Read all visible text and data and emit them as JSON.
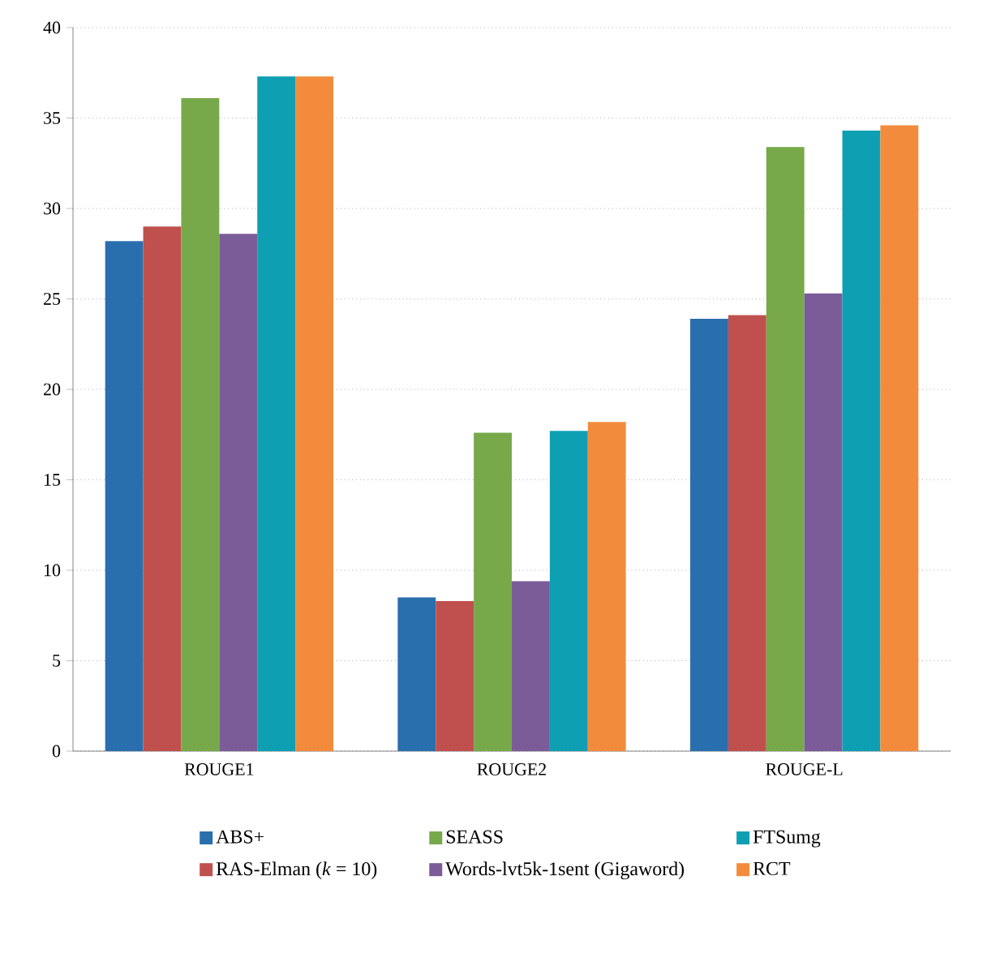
{
  "chart_data": {
    "type": "bar",
    "categories": [
      "ROUGE1",
      "ROUGE2",
      "ROUGE-L"
    ],
    "series": [
      {
        "name": "ABS+",
        "color": "#2a6fad",
        "values": [
          28.2,
          8.5,
          23.9
        ]
      },
      {
        "name": "RAS-Elman (*k* = 10)",
        "color": "#c0504d",
        "values": [
          29.0,
          8.3,
          24.1
        ]
      },
      {
        "name": "SEASS",
        "color": "#77a94a",
        "values": [
          36.1,
          17.6,
          33.4
        ]
      },
      {
        "name": "Words-lvt5k-1sent (Gigaword)",
        "color": "#7b5c99",
        "values": [
          28.6,
          9.4,
          25.3
        ]
      },
      {
        "name": "FTSumg",
        "color": "#0e9fb3",
        "values": [
          37.3,
          17.7,
          34.3
        ]
      },
      {
        "name": "RCT",
        "color": "#f28c3c",
        "values": [
          37.3,
          18.2,
          34.6
        ]
      }
    ],
    "ylim": [
      0,
      40
    ],
    "yticks": [
      0,
      5,
      10,
      15,
      20,
      25,
      30,
      35,
      40
    ],
    "grid": "y",
    "legend": "bottom"
  }
}
